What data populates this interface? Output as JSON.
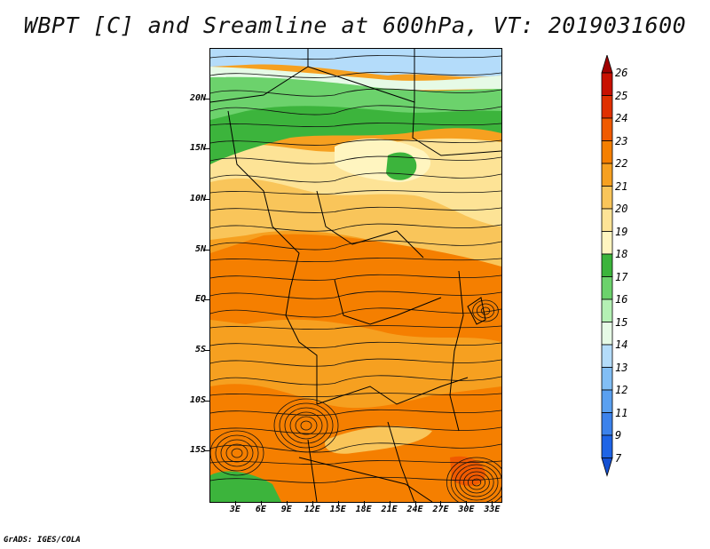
{
  "title": "WBPT [C] and Sreamline at 600hPa, VT: 2019031600",
  "credit": "GrADS: IGES/COLA",
  "map": {
    "lat_labels": [
      "20N",
      "15N",
      "10N",
      "5N",
      "EQ",
      "5S",
      "10S",
      "15S"
    ],
    "lon_labels": [
      "3E",
      "6E",
      "9E",
      "12E",
      "15E",
      "18E",
      "21E",
      "24E",
      "27E",
      "30E",
      "33E"
    ],
    "lat_values": [
      20,
      15,
      10,
      5,
      0,
      -5,
      -10,
      -15
    ],
    "lon_values": [
      3,
      6,
      9,
      12,
      15,
      18,
      21,
      24,
      27,
      30,
      33
    ],
    "lon_range": [
      0,
      34
    ],
    "lat_range": [
      -20,
      25
    ],
    "field": "WBPT",
    "overlay": "streamlines"
  },
  "colorbar": {
    "levels": [
      "26",
      "25",
      "24",
      "23",
      "22",
      "21",
      "20",
      "19",
      "18",
      "17",
      "16",
      "15",
      "14",
      "13",
      "12",
      "11",
      "9",
      "7"
    ],
    "colors": [
      "#a00000",
      "#c81000",
      "#e03000",
      "#f05a00",
      "#f57f00",
      "#f6a020",
      "#f9c55a",
      "#fde396",
      "#fff5c0",
      "#3cb43c",
      "#6cd26c",
      "#b4f0b4",
      "#e6fae6",
      "#b4dcfa",
      "#82bef5",
      "#5aa0f0",
      "#3c82eb",
      "#1e64e6",
      "#1450d2"
    ]
  }
}
